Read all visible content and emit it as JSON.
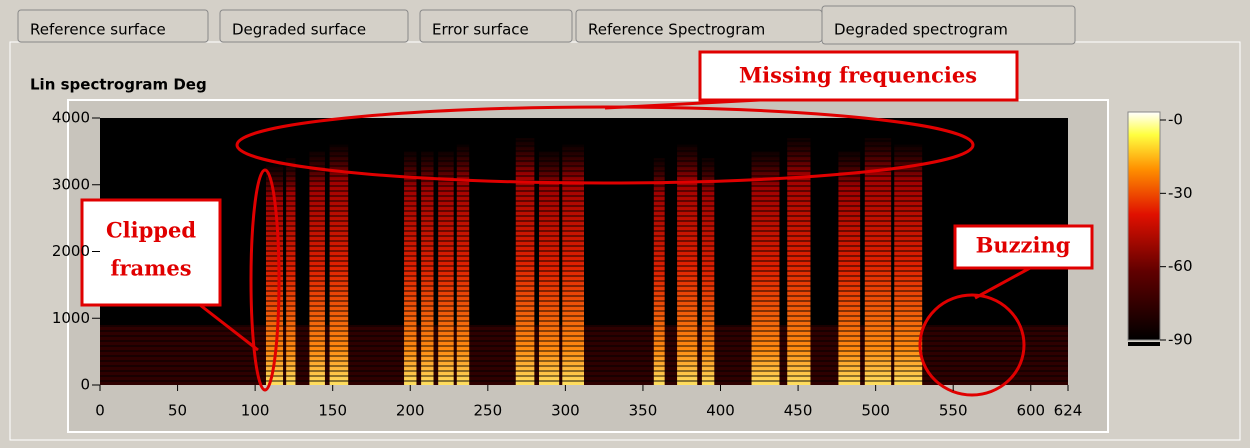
{
  "tabs": [
    "Reference surface",
    "Degraded surface",
    "Error surface",
    "Reference Spectrogram",
    "Degraded spectrogram"
  ],
  "chart_data": {
    "type": "spectrogram",
    "title": "Lin spectrogram Deg",
    "xlim": [
      0,
      624
    ],
    "xticks": [
      0,
      50,
      100,
      150,
      200,
      250,
      300,
      350,
      400,
      450,
      500,
      550,
      600,
      624
    ],
    "ylim": [
      0,
      4000
    ],
    "yticks": [
      0,
      1000,
      2000,
      3000,
      4000
    ],
    "clim": [
      -90,
      0
    ],
    "cticks": [
      {
        "value": 0,
        "label": "-0"
      },
      -30,
      -60,
      -90
    ],
    "bursts": [
      [
        107,
        118,
        3300
      ],
      [
        120,
        126,
        3400
      ],
      [
        135,
        145,
        3500
      ],
      [
        148,
        160,
        3600
      ],
      [
        196,
        204,
        3500
      ],
      [
        207,
        215,
        3500
      ],
      [
        218,
        228,
        3500
      ],
      [
        230,
        238,
        3600
      ],
      [
        268,
        280,
        3700
      ],
      [
        283,
        296,
        3500
      ],
      [
        298,
        312,
        3600
      ],
      [
        357,
        364,
        3400
      ],
      [
        372,
        385,
        3600
      ],
      [
        388,
        396,
        3400
      ],
      [
        420,
        438,
        3500
      ],
      [
        443,
        458,
        3700
      ],
      [
        476,
        490,
        3500
      ],
      [
        493,
        510,
        3700
      ],
      [
        512,
        530,
        3600
      ]
    ],
    "annotations": [
      [
        "Missing frequencies"
      ],
      [
        "Clipped",
        "frames"
      ],
      [
        "Buzzing"
      ]
    ]
  }
}
